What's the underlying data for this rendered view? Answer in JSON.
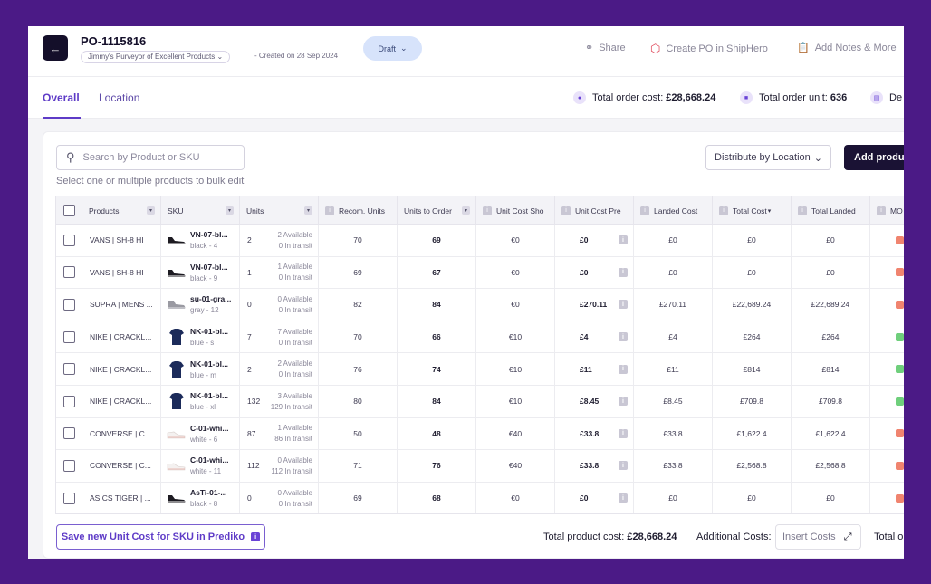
{
  "header": {
    "back_icon": "arrow-left-icon",
    "po_number": "PO-1115816",
    "vendor": "Jimmy's Purveyor of Excellent Products",
    "created": "- Created on 28 Sep 2024",
    "status": "Draft",
    "actions": {
      "share": "Share",
      "create_po": "Create PO in ShipHero",
      "add_notes": "Add Notes & More"
    }
  },
  "tabs": [
    {
      "label": "Overall",
      "active": true
    },
    {
      "label": "Location",
      "active": false
    }
  ],
  "stats": {
    "total_cost_label": "Total order cost:",
    "total_cost_value": "£28,668.24",
    "total_unit_label": "Total order unit:",
    "total_unit_value": "636",
    "extra_label": "De"
  },
  "toolbar": {
    "search_placeholder": "Search by Product or SKU",
    "hint": "Select one or multiple products to bulk edit",
    "distribute": "Distribute by Location",
    "add_product": "Add product"
  },
  "columns": {
    "products": "Products",
    "sku": "SKU",
    "units": "Units",
    "recom_units": "Recom. Units",
    "units_to_order": "Units to Order",
    "unit_cost_shop": "Unit Cost Sho",
    "unit_cost_pre": "Unit Cost Pre",
    "landed_cost": "Landed Cost",
    "total_cost": "Total Cost",
    "total_landed": "Total Landed",
    "moq": "MO"
  },
  "rows": [
    {
      "product": "VANS | SH-8 HI",
      "sku": "VN-07-bl...",
      "variant": "black - 4",
      "units": "2",
      "available": "2 Available",
      "transit": "0 In transit",
      "recom": "70",
      "order": "69",
      "shop": "€0",
      "pre": "£0",
      "landed": "£0",
      "total": "£0",
      "total_landed": "£0",
      "moq_color": "#f0846f",
      "thumb": "black-shoe"
    },
    {
      "product": "VANS | SH-8 HI",
      "sku": "VN-07-bl...",
      "variant": "black - 9",
      "units": "1",
      "available": "1 Available",
      "transit": "0 In transit",
      "recom": "69",
      "order": "67",
      "shop": "€0",
      "pre": "£0",
      "landed": "£0",
      "total": "£0",
      "total_landed": "£0",
      "moq_color": "#f0846f",
      "thumb": "black-shoe"
    },
    {
      "product": "SUPRA | MENS ...",
      "sku": "su-01-gra...",
      "variant": "gray - 12",
      "units": "0",
      "available": "0 Available",
      "transit": "0 In transit",
      "recom": "82",
      "order": "84",
      "shop": "€0",
      "pre": "£270.11",
      "landed": "£270.11",
      "total": "£22,689.24",
      "total_landed": "£22,689.24",
      "moq_color": "#f0846f",
      "thumb": "gray-shoe"
    },
    {
      "product": "NIKE | CRACKL...",
      "sku": "NK-01-bl...",
      "variant": "blue - s",
      "units": "7",
      "available": "7 Available",
      "transit": "0 In transit",
      "recom": "70",
      "order": "66",
      "shop": "€10",
      "pre": "£4",
      "landed": "£4",
      "total": "£264",
      "total_landed": "£264",
      "moq_color": "#6fcf7c",
      "thumb": "blue-shirt"
    },
    {
      "product": "NIKE | CRACKL...",
      "sku": "NK-01-bl...",
      "variant": "blue - m",
      "units": "2",
      "available": "2 Available",
      "transit": "0 In transit",
      "recom": "76",
      "order": "74",
      "shop": "€10",
      "pre": "£11",
      "landed": "£11",
      "total": "£814",
      "total_landed": "£814",
      "moq_color": "#6fcf7c",
      "thumb": "blue-shirt"
    },
    {
      "product": "NIKE | CRACKL...",
      "sku": "NK-01-bl...",
      "variant": "blue - xl",
      "units": "132",
      "available": "3 Available",
      "transit": "129 In transit",
      "recom": "80",
      "order": "84",
      "shop": "€10",
      "pre": "£8.45",
      "landed": "£8.45",
      "total": "£709.8",
      "total_landed": "£709.8",
      "moq_color": "#6fcf7c",
      "thumb": "blue-shirt"
    },
    {
      "product": "CONVERSE | C...",
      "sku": "C-01-whi...",
      "variant": "white - 6",
      "units": "87",
      "available": "1 Available",
      "transit": "86 In transit",
      "recom": "50",
      "order": "48",
      "shop": "€40",
      "pre": "£33.8",
      "landed": "£33.8",
      "total": "£1,622.4",
      "total_landed": "£1,622.4",
      "moq_color": "#f0846f",
      "thumb": "white-shoe"
    },
    {
      "product": "CONVERSE | C...",
      "sku": "C-01-whi...",
      "variant": "white - 11",
      "units": "112",
      "available": "0 Available",
      "transit": "112 In transit",
      "recom": "71",
      "order": "76",
      "shop": "€40",
      "pre": "£33.8",
      "landed": "£33.8",
      "total": "£2,568.8",
      "total_landed": "£2,568.8",
      "moq_color": "#f0846f",
      "thumb": "white-shoe"
    },
    {
      "product": "ASICS TIGER | ...",
      "sku": "AsTi-01-...",
      "variant": "black - 8",
      "units": "0",
      "available": "0 Available",
      "transit": "0 In transit",
      "recom": "69",
      "order": "68",
      "shop": "€0",
      "pre": "£0",
      "landed": "£0",
      "total": "£0",
      "total_landed": "£0",
      "moq_color": "#f0846f",
      "thumb": "black-shoe"
    }
  ],
  "footer": {
    "save_unit_cost": "Save new Unit Cost for SKU in Prediko",
    "total_product_cost_label": "Total product cost:",
    "total_product_cost_value": "£28,668.24",
    "additional_costs_label": "Additional Costs:",
    "insert_costs": "Insert Costs",
    "total_order_label": "Total o"
  }
}
